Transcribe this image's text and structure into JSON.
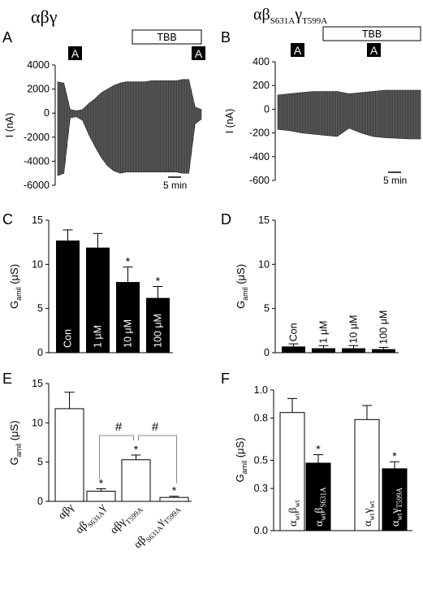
{
  "figure": {
    "headers": {
      "left": "αβγ",
      "right_main": "αβ",
      "right_sub1": "S631A",
      "right_mid": "γ",
      "right_sub2": "T599A"
    },
    "panel_letters": {
      "A": "A",
      "B": "B",
      "C": "C",
      "D": "D",
      "E": "E",
      "F": "F"
    }
  },
  "chart_data": [
    {
      "panel": "A",
      "type": "line",
      "ylabel": "I (nA)",
      "yticks": [
        "4000",
        "2000",
        "0",
        "-2000",
        "-4000",
        "-6000"
      ],
      "ylim": [
        -6000,
        4000
      ],
      "drug_label": "TBB",
      "amiloride_markers": [
        "A",
        "A"
      ],
      "scale_bar": "5 min",
      "series": [
        {
          "x_min": [
            0,
            2,
            4,
            6,
            8,
            10,
            12,
            14,
            16,
            18,
            20,
            22,
            24,
            26,
            28,
            30,
            32,
            34,
            36,
            38,
            40,
            42,
            44,
            46
          ],
          "envelope_upper_nA": [
            2600,
            2500,
            300,
            200,
            300,
            800,
            1200,
            1700,
            2000,
            2300,
            2500,
            2600,
            2600,
            2600,
            2600,
            2700,
            2700,
            2700,
            2700,
            2700,
            2800,
            2800,
            500,
            300
          ],
          "envelope_lower_nA": [
            -5200,
            -5000,
            -400,
            -300,
            -600,
            -1800,
            -2800,
            -3700,
            -4400,
            -4800,
            -5000,
            -4900,
            -4900,
            -4900,
            -4900,
            -4900,
            -4900,
            -4900,
            -4900,
            -4900,
            -5000,
            -5000,
            -900,
            -500
          ]
        }
      ]
    },
    {
      "panel": "B",
      "type": "line",
      "ylabel": "I (nA)",
      "yticks": [
        "400",
        "200",
        "0",
        "-200",
        "-400",
        "-600"
      ],
      "ylim": [
        -600,
        400
      ],
      "drug_label": "TBB",
      "amiloride_markers": [
        "A",
        "A"
      ],
      "scale_bar": "5 min",
      "series": [
        {
          "x_min": [
            0,
            4,
            8,
            12,
            16,
            20,
            24,
            28,
            32,
            36,
            40,
            44,
            48
          ],
          "envelope_upper_nA": [
            120,
            130,
            140,
            150,
            150,
            150,
            130,
            140,
            150,
            160,
            160,
            160,
            160
          ],
          "envelope_lower_nA": [
            -170,
            -180,
            -200,
            -210,
            -220,
            -230,
            -160,
            -200,
            -230,
            -240,
            -245,
            -250,
            -250
          ]
        }
      ]
    },
    {
      "panel": "C",
      "type": "bar",
      "ylabel": "G",
      "ylabel_sub": "amil",
      "ylabel_unit": " (μS)",
      "yticks": [
        "0",
        "5",
        "10",
        "15"
      ],
      "ylim": [
        0,
        15
      ],
      "categories": [
        "Con",
        "1 μM",
        "10 μM",
        "100 μM"
      ],
      "values": [
        12.7,
        11.9,
        8.0,
        6.2
      ],
      "errors": [
        1.2,
        1.6,
        1.7,
        1.3
      ],
      "marks": [
        "",
        "",
        "*",
        "*"
      ]
    },
    {
      "panel": "D",
      "type": "bar",
      "ylabel": "G",
      "ylabel_sub": "amil",
      "ylabel_unit": " (μS)",
      "yticks": [
        "0",
        "5",
        "10",
        "15"
      ],
      "ylim": [
        0,
        15
      ],
      "categories": [
        "Con",
        "1 μM",
        "10 μM",
        "100 μM"
      ],
      "values": [
        0.7,
        0.5,
        0.5,
        0.4
      ],
      "errors": [
        0.3,
        0.3,
        0.3,
        0.2
      ],
      "marks": [
        "",
        "",
        "",
        ""
      ]
    },
    {
      "panel": "E",
      "type": "bar",
      "ylabel": "G",
      "ylabel_sub": "amil",
      "ylabel_unit": " (μS)",
      "yticks": [
        "0",
        "5",
        "10",
        "15"
      ],
      "ylim": [
        0,
        15
      ],
      "categories": [
        {
          "main": "αβγ",
          "sub": "",
          "mid": "",
          "sub2": ""
        },
        {
          "main": "αβ",
          "sub": "S631A",
          "mid": "γ",
          "sub2": ""
        },
        {
          "main": "αβγ",
          "sub": "T599A",
          "mid": "",
          "sub2": ""
        },
        {
          "main": "αβ",
          "sub": "S631A",
          "mid": "γ",
          "sub2": "T599A"
        }
      ],
      "values": [
        11.8,
        1.3,
        5.3,
        0.5
      ],
      "errors": [
        2.1,
        0.3,
        0.6,
        0.15
      ],
      "marks": [
        "",
        "*",
        "*",
        "*"
      ],
      "bracket_mark": "#"
    },
    {
      "panel": "F",
      "type": "bar",
      "ylabel": "G",
      "ylabel_sub": "amil",
      "ylabel_unit": " (μS)",
      "yticks": [
        "0.0",
        "0.3",
        "0.5",
        "0.8",
        "1.0"
      ],
      "ylim": [
        0,
        1.0
      ],
      "categories": [
        {
          "parts": [
            "α",
            "wt",
            "β",
            "wt"
          ],
          "fill": "white"
        },
        {
          "parts": [
            "α",
            "wt",
            "β",
            "S631A"
          ],
          "fill": "black"
        },
        {
          "parts": [
            "α",
            "wt",
            "γ",
            "wt"
          ],
          "fill": "white"
        },
        {
          "parts": [
            "α",
            "wt",
            "γ",
            "T599A"
          ],
          "fill": "black"
        }
      ],
      "values": [
        0.84,
        0.48,
        0.79,
        0.44
      ],
      "errors": [
        0.1,
        0.06,
        0.1,
        0.05
      ],
      "marks": [
        "",
        "*",
        "",
        "*"
      ]
    }
  ]
}
